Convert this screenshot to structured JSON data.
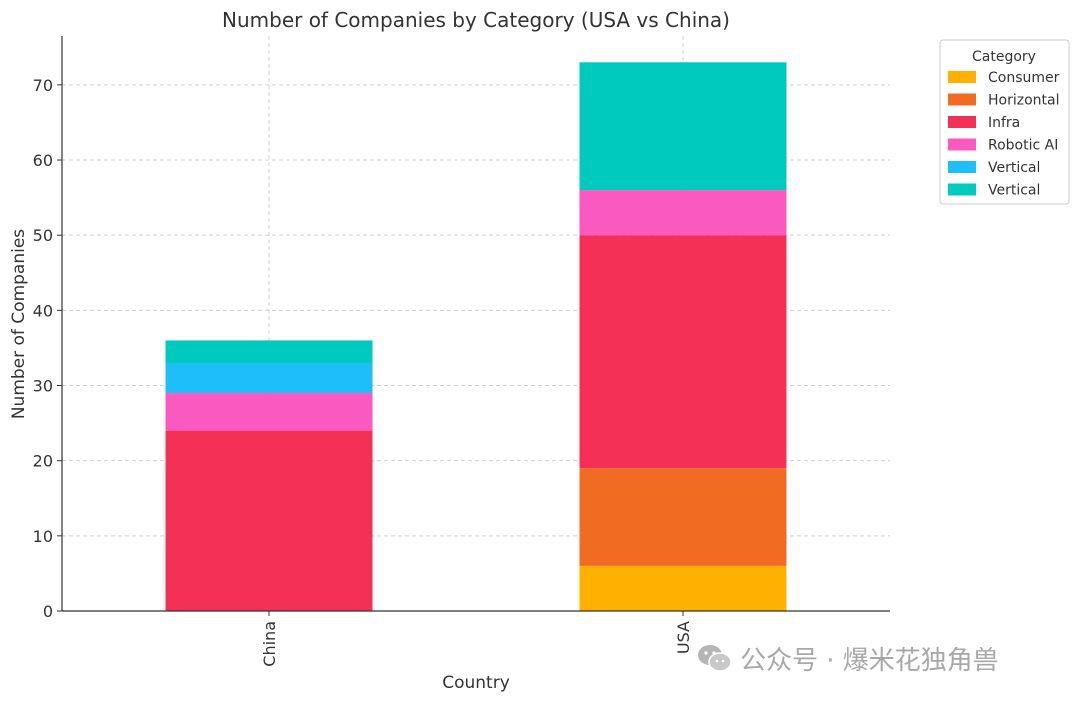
{
  "chart_data": {
    "type": "bar",
    "stacked": true,
    "title": "Number of Companies by Category (USA vs China)",
    "xlabel": "Country",
    "ylabel": "Number of Companies",
    "categories": [
      "China",
      "USA"
    ],
    "ylim": [
      0,
      76.5
    ],
    "yticks": [
      0,
      10,
      20,
      30,
      40,
      50,
      60,
      70
    ],
    "grid": true,
    "legend": {
      "title": "Category",
      "placement": "top-right"
    },
    "series": [
      {
        "name": "Consumer",
        "color": "#FFB000",
        "values": [
          0,
          6
        ]
      },
      {
        "name": "Horizontal",
        "color": "#F26B22",
        "values": [
          0,
          13
        ]
      },
      {
        "name": "Infra",
        "color": "#F43057",
        "values": [
          24,
          31
        ]
      },
      {
        "name": "Robotic AI",
        "color": "#FA5AC0",
        "values": [
          5,
          6
        ]
      },
      {
        "name": "Vertical",
        "color": "#1EBEFA",
        "values": [
          4,
          0
        ]
      },
      {
        "name": "Vertical",
        "color": "#00C9BD",
        "values": [
          3,
          17
        ]
      }
    ]
  },
  "watermark": {
    "icon": "wechat-icon",
    "text": "公众号 · 爆米花独角兽"
  }
}
